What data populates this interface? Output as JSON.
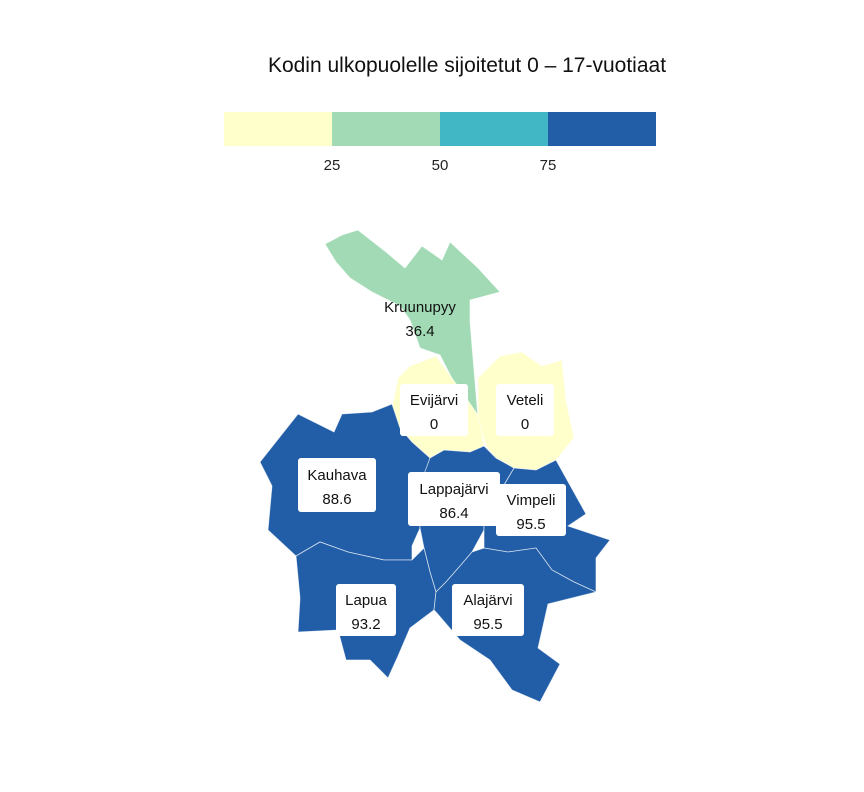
{
  "title": "Kodin ulkopuolelle sijoitetut 0 – 17-vuotiaat",
  "legend": {
    "colors": [
      "#ffffcc",
      "#a1dab4",
      "#41b6c4",
      "#225ea8"
    ],
    "ticks": [
      "25",
      "50",
      "75"
    ]
  },
  "regions": [
    {
      "name": "Kruunupyy",
      "value": "36.4",
      "color": "#a1dab4"
    },
    {
      "name": "Evijärvi",
      "value": "0",
      "color": "#ffffcc"
    },
    {
      "name": "Veteli",
      "value": "0",
      "color": "#ffffcc"
    },
    {
      "name": "Kauhava",
      "value": "88.6",
      "color": "#225ea8"
    },
    {
      "name": "Lappajärvi",
      "value": "86.4",
      "color": "#225ea8"
    },
    {
      "name": "Vimpeli",
      "value": "95.5",
      "color": "#225ea8"
    },
    {
      "name": "Lapua",
      "value": "93.2",
      "color": "#225ea8"
    },
    {
      "name": "Alajärvi",
      "value": "95.5",
      "color": "#225ea8"
    }
  ]
}
